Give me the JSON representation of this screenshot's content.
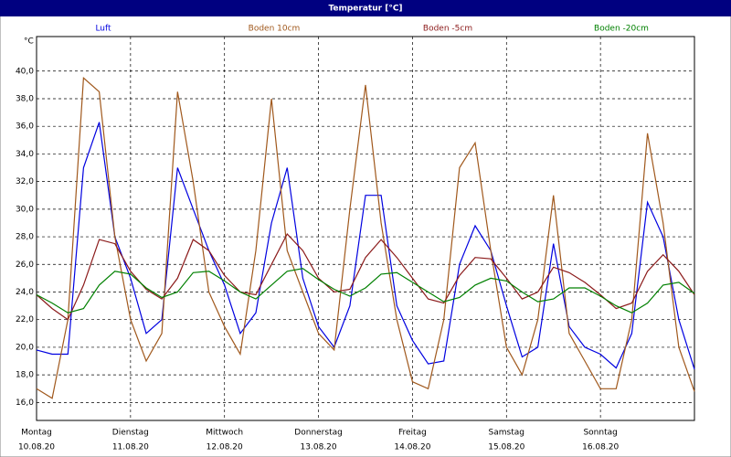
{
  "chart_data": {
    "type": "line",
    "title": "Temperatur [°C]",
    "y_unit": "°C",
    "x": [
      0,
      4,
      8,
      12,
      16,
      20,
      24,
      28,
      32,
      36,
      40,
      44,
      48,
      52,
      56,
      60,
      64,
      68,
      72,
      76,
      80,
      84,
      88,
      92,
      96,
      100,
      104,
      108,
      112,
      116,
      120,
      124,
      128,
      132,
      136,
      140,
      144,
      148,
      152,
      156,
      160,
      164,
      168
    ],
    "xlim": [
      0,
      168
    ],
    "xticks": [
      {
        "value": 0,
        "label": "Montag",
        "date": "10.08.20"
      },
      {
        "value": 24,
        "label": "Dienstag",
        "date": "11.08.20"
      },
      {
        "value": 48,
        "label": "Mittwoch",
        "date": "12.08.20"
      },
      {
        "value": 72,
        "label": "Donnerstag",
        "date": "13.08.20"
      },
      {
        "value": 96,
        "label": "Freitag",
        "date": "14.08.20"
      },
      {
        "value": 120,
        "label": "Samstag",
        "date": "15.08.20"
      },
      {
        "value": 144,
        "label": "Sonntag",
        "date": "16.08.20"
      }
    ],
    "ylim": [
      14.7,
      42.5
    ],
    "yticks": [
      {
        "value": 16,
        "label": "16,0"
      },
      {
        "value": 18,
        "label": "18,0"
      },
      {
        "value": 20,
        "label": "20,0"
      },
      {
        "value": 22,
        "label": "22,0"
      },
      {
        "value": 24,
        "label": "24,0"
      },
      {
        "value": 26,
        "label": "26,0"
      },
      {
        "value": 28,
        "label": "28,0"
      },
      {
        "value": 30,
        "label": "30,0"
      },
      {
        "value": 32,
        "label": "32,0"
      },
      {
        "value": 34,
        "label": "34,0"
      },
      {
        "value": 36,
        "label": "36,0"
      },
      {
        "value": 38,
        "label": "38,0"
      },
      {
        "value": 40,
        "label": "40,0"
      }
    ],
    "grid": true,
    "series": [
      {
        "name": "Luft",
        "color": "#0000e0",
        "values": [
          19.8,
          19.5,
          19.5,
          33,
          36.3,
          28,
          25,
          21,
          22,
          33,
          30,
          27,
          24.5,
          21,
          22.5,
          29,
          33,
          25,
          21.5,
          20,
          23,
          31,
          31,
          23,
          20.5,
          18.8,
          19,
          26,
          28.8,
          27,
          23,
          19.3,
          20,
          27.5,
          21.5,
          20,
          19.5,
          18.5,
          21,
          30.5,
          28,
          22,
          18.4
        ]
      },
      {
        "name": "Boden 10cm",
        "color": "#a0581c",
        "values": [
          17,
          16.3,
          22,
          39.5,
          38.5,
          28,
          22,
          19,
          21,
          38.5,
          32,
          24,
          21.5,
          19.5,
          27,
          38,
          27,
          24,
          21,
          19.8,
          30,
          39,
          29,
          22,
          17.5,
          17,
          22,
          33,
          34.8,
          27,
          20,
          18,
          22,
          31,
          21,
          19,
          17,
          17,
          22,
          35.5,
          29,
          20,
          16.8
        ]
      },
      {
        "name": "Boden -5cm",
        "color": "#8b1a1a",
        "values": [
          23.8,
          22.8,
          22,
          24.5,
          27.8,
          27.5,
          25.5,
          24.2,
          23.5,
          25,
          27.8,
          27,
          25.2,
          24,
          23.8,
          26,
          28.2,
          27,
          25,
          24,
          24.2,
          26.5,
          27.8,
          26.5,
          25,
          23.5,
          23.2,
          25.2,
          26.5,
          26.4,
          25,
          23.5,
          24,
          25.8,
          25.4,
          24.7,
          23.8,
          22.8,
          23.2,
          25.5,
          26.7,
          25.5,
          23.8
        ]
      },
      {
        "name": "Boden -20cm",
        "color": "#008000",
        "values": [
          23.8,
          23.2,
          22.5,
          22.8,
          24.5,
          25.5,
          25.3,
          24.3,
          23.6,
          24,
          25.4,
          25.5,
          24.8,
          24,
          23.5,
          24.5,
          25.5,
          25.7,
          24.9,
          24.2,
          23.7,
          24.3,
          25.3,
          25.4,
          24.7,
          24,
          23.3,
          23.6,
          24.5,
          25,
          24.8,
          24,
          23.3,
          23.5,
          24.3,
          24.3,
          23.7,
          23,
          22.5,
          23.2,
          24.5,
          24.7,
          23.9
        ]
      }
    ]
  }
}
